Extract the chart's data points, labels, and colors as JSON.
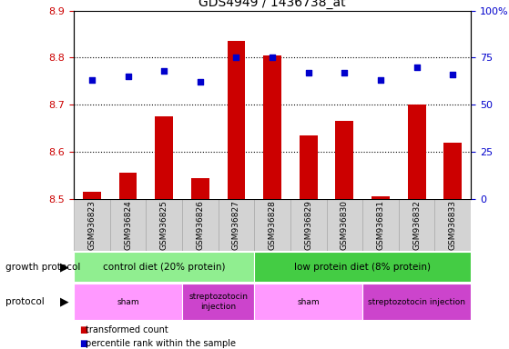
{
  "title": "GDS4949 / 1436738_at",
  "samples": [
    "GSM936823",
    "GSM936824",
    "GSM936825",
    "GSM936826",
    "GSM936827",
    "GSM936828",
    "GSM936829",
    "GSM936830",
    "GSM936831",
    "GSM936832",
    "GSM936833"
  ],
  "transformed_count": [
    8.515,
    8.555,
    8.675,
    8.545,
    8.835,
    8.805,
    8.635,
    8.665,
    8.505,
    8.7,
    8.62
  ],
  "percentile_rank": [
    63,
    65,
    68,
    62,
    75,
    75,
    67,
    67,
    63,
    70,
    66
  ],
  "ylim_left": [
    8.5,
    8.9
  ],
  "ylim_right": [
    0,
    100
  ],
  "yticks_left": [
    8.5,
    8.6,
    8.7,
    8.8,
    8.9
  ],
  "yticks_right": [
    0,
    25,
    50,
    75,
    100
  ],
  "ytick_right_labels": [
    "0",
    "25",
    "50",
    "75",
    "100%"
  ],
  "bar_color": "#cc0000",
  "dot_color": "#0000cc",
  "bar_bottom": 8.5,
  "growth_protocol_groups": [
    {
      "label": "control diet (20% protein)",
      "start": 0,
      "end": 5,
      "color": "#90ee90"
    },
    {
      "label": "low protein diet (8% protein)",
      "start": 5,
      "end": 11,
      "color": "#44cc44"
    }
  ],
  "protocol_groups": [
    {
      "label": "sham",
      "start": 0,
      "end": 3,
      "color": "#ff99ff"
    },
    {
      "label": "streptozotocin\ninjection",
      "start": 3,
      "end": 5,
      "color": "#cc44cc"
    },
    {
      "label": "sham",
      "start": 5,
      "end": 8,
      "color": "#ff99ff"
    },
    {
      "label": "streptozotocin injection",
      "start": 8,
      "end": 11,
      "color": "#cc44cc"
    }
  ],
  "tick_label_color_left": "#cc0000",
  "tick_label_color_right": "#0000cc",
  "dotted_line_y": [
    8.6,
    8.7,
    8.8
  ],
  "col_bg_color": "#d3d3d3",
  "col_border_color": "#aaaaaa"
}
